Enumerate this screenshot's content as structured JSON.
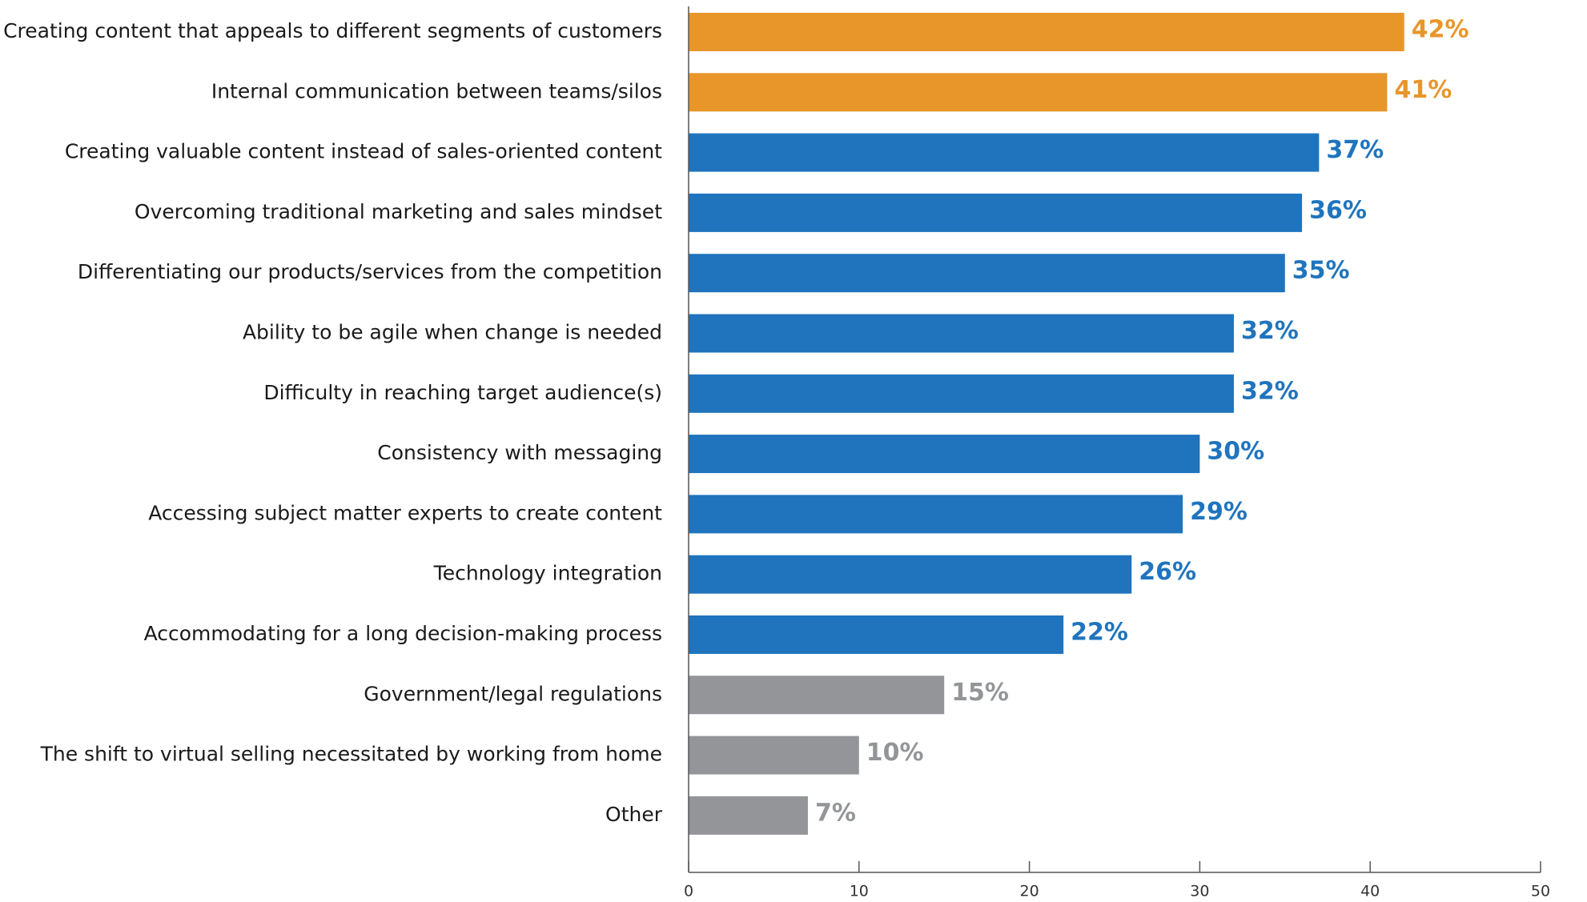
{
  "chart_data": {
    "type": "bar",
    "orientation": "horizontal",
    "categories": [
      "Creating content that appeals to different segments of customers",
      "Internal communication between teams/silos",
      "Creating valuable content instead of sales-oriented content",
      "Overcoming traditional marketing and sales mindset",
      "Differentiating our products/services from the competition",
      "Ability to be agile when change is needed",
      "Difficulty in reaching target audience(s)",
      "Consistency with messaging",
      "Accessing subject matter experts to create content",
      "Technology integration",
      "Accommodating for a long decision-making process",
      "Government/legal regulations",
      "The shift to virtual selling necessitated  by working from home",
      "Other"
    ],
    "values": [
      42,
      41,
      37,
      36,
      35,
      32,
      32,
      30,
      29,
      26,
      22,
      15,
      10,
      7
    ],
    "value_labels": [
      "42%",
      "41%",
      "37%",
      "36%",
      "35%",
      "32%",
      "32%",
      "30%",
      "29%",
      "26%",
      "22%",
      "15%",
      "10%",
      "7%"
    ],
    "colors": [
      "#e8962a",
      "#e8962a",
      "#1f74bd",
      "#1f74bd",
      "#1f74bd",
      "#1f74bd",
      "#1f74bd",
      "#1f74bd",
      "#1f74bd",
      "#1f74bd",
      "#1f74bd",
      "#939598",
      "#939598",
      "#939598"
    ],
    "xlim": [
      0,
      50
    ],
    "xticks": [
      0,
      10,
      20,
      30,
      40,
      50
    ],
    "grid": false
  }
}
